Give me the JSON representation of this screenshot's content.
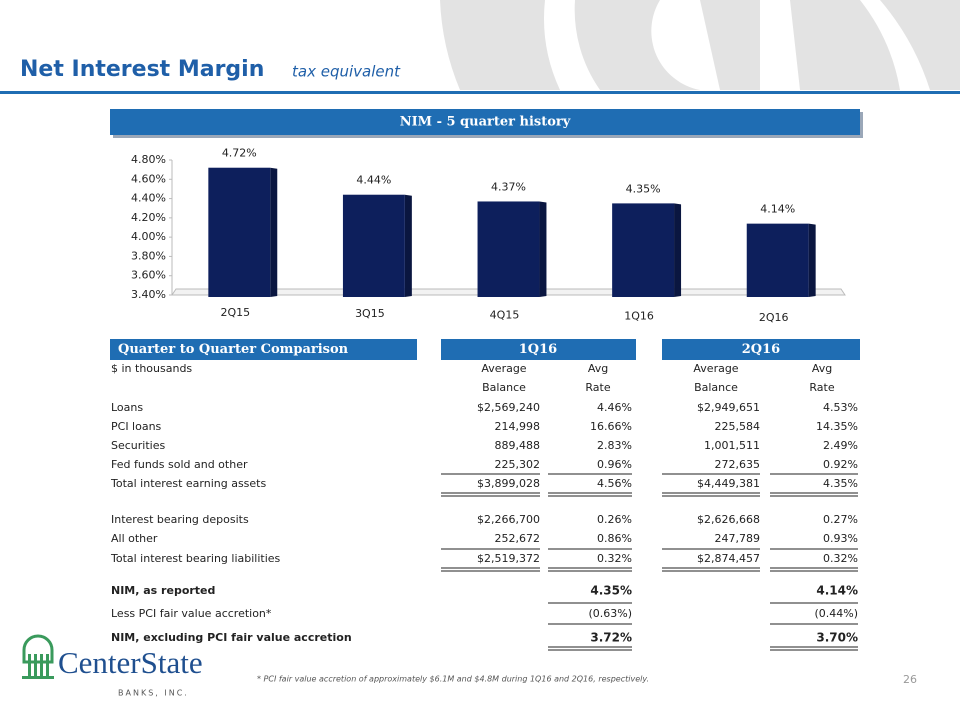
{
  "header": {
    "title": "Net Interest Margin",
    "subtitle": "tax equivalent"
  },
  "chart_data": {
    "type": "bar",
    "title": "NIM - 5 quarter history",
    "categories": [
      "2Q15",
      "3Q15",
      "4Q15",
      "1Q16",
      "2Q16"
    ],
    "values": [
      4.72,
      4.44,
      4.37,
      4.35,
      4.14
    ],
    "value_labels": [
      "4.72%",
      "4.44%",
      "4.37%",
      "4.35%",
      "4.14%"
    ],
    "color": "#0d1f5c",
    "ylim": [
      3.4,
      4.8
    ],
    "yticks": [
      {
        "value": 3.4,
        "label": "3.40%"
      },
      {
        "value": 3.6,
        "label": "3.60%"
      },
      {
        "value": 3.8,
        "label": "3.80%"
      },
      {
        "value": 4.0,
        "label": "4.00%"
      },
      {
        "value": 4.2,
        "label": "4.20%"
      },
      {
        "value": 4.4,
        "label": "4.40%"
      },
      {
        "value": 4.6,
        "label": "4.60%"
      },
      {
        "value": 4.8,
        "label": "4.80%"
      }
    ]
  },
  "table": {
    "title": "Quarter to Quarter Comparison",
    "periods": [
      "1Q16",
      "2Q16"
    ],
    "units": "$ in thousands",
    "column_labels": [
      [
        "Average",
        "Balance"
      ],
      [
        "Avg",
        "Rate"
      ],
      [
        "Average",
        "Balance"
      ],
      [
        "Avg",
        "Rate"
      ]
    ],
    "rows": [
      [
        "Loans",
        "$2,569,240",
        "4.46%",
        "$2,949,651",
        "4.53%"
      ],
      [
        "PCI loans",
        "214,998",
        "16.66%",
        "225,584",
        "14.35%"
      ],
      [
        "Securities",
        "889,488",
        "2.83%",
        "1,001,511",
        "2.49%"
      ],
      [
        "Fed funds sold and other",
        "225,302",
        "0.96%",
        "272,635",
        "0.92%"
      ],
      [
        "Total interest earning assets",
        "$3,899,028",
        "4.56%",
        "$4,449,381",
        "4.35%"
      ],
      [
        "Interest bearing deposits",
        "$2,266,700",
        "0.26%",
        "$2,626,668",
        "0.27%"
      ],
      [
        "All other",
        "252,672",
        "0.86%",
        "247,789",
        "0.93%"
      ],
      [
        "Total interest bearing liabilities",
        "$2,519,372",
        "0.32%",
        "$2,874,457",
        "0.32%"
      ],
      [
        "NIM,  as reported",
        null,
        "4.35%",
        null,
        "4.14%"
      ],
      [
        "Less PCI fair value accretion*",
        null,
        "(0.63%)",
        null,
        "(0.44%)"
      ],
      [
        "NIM,  excluding PCI fair value accretion",
        null,
        "3.72%",
        null,
        "3.70%"
      ]
    ]
  },
  "footnote": "*  PCI fair value accretion of approximately  $6.1M and $4.8M during 1Q16 and 2Q16, respectively.",
  "page_number": "26",
  "logo": {
    "name": "CenterState",
    "tagline": "BANKS, INC."
  }
}
